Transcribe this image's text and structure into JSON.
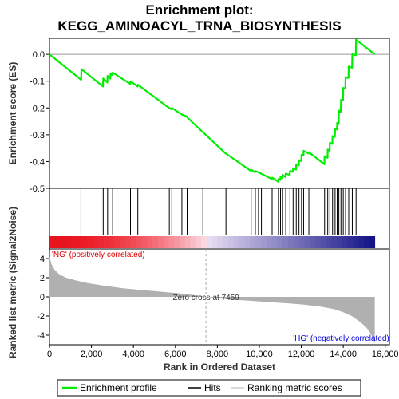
{
  "title_line1": "Enrichment plot:",
  "title_line2": "KEGG_AMINOACYL_TRNA_BIOSYNTHESIS",
  "colors": {
    "profile": "#00ee00",
    "hits": "#000000",
    "metric_fill": "#b0b0b0",
    "pos_label": "#dd0000",
    "neg_label": "#0000dd",
    "frame": "#000000"
  },
  "chart_data": {
    "type": "line",
    "es_panel": {
      "ylabel": "Enrichment score (ES)",
      "xlim": [
        0,
        16200
      ],
      "ylim": [
        -0.5,
        0.06
      ],
      "yticks": [
        0.0,
        -0.1,
        -0.2,
        -0.3,
        -0.4,
        -0.5
      ],
      "ytick_labels": [
        "0.0",
        "-0.1",
        "-0.2",
        "-0.3",
        "-0.4",
        "-0.5"
      ],
      "series": [
        {
          "name": "Enrichment profile",
          "x": [
            0,
            1510,
            1520,
            2550,
            2560,
            2760,
            2770,
            2900,
            2910,
            3000,
            3010,
            3850,
            3860,
            4200,
            4210,
            5700,
            5710,
            5820,
            5830,
            6300,
            6310,
            6550,
            6560,
            7300,
            7310,
            8400,
            8410,
            9600,
            9610,
            9800,
            9810,
            9950,
            9960,
            10600,
            10610,
            10900,
            10910,
            11000,
            11010,
            11100,
            11110,
            11250,
            11260,
            11450,
            11460,
            11600,
            11610,
            11750,
            11760,
            11880,
            11890,
            12000,
            12010,
            12100,
            12110,
            12350,
            12360,
            13100,
            13110,
            13250,
            13260,
            13350,
            13360,
            13480,
            13490,
            13600,
            13610,
            13700,
            13710,
            13780,
            13790,
            13880,
            13890,
            13990,
            14000,
            14100,
            14110,
            14250,
            14260,
            14420,
            14430,
            14600,
            14610,
            15500
          ],
          "y": [
            0.0,
            -0.095,
            -0.055,
            -0.12,
            -0.09,
            -0.105,
            -0.08,
            -0.09,
            -0.072,
            -0.077,
            -0.068,
            -0.11,
            -0.1,
            -0.12,
            -0.113,
            -0.2,
            -0.2,
            -0.205,
            -0.2,
            -0.224,
            -0.225,
            -0.232,
            -0.235,
            -0.29,
            -0.29,
            -0.37,
            -0.37,
            -0.435,
            -0.43,
            -0.44,
            -0.435,
            -0.44,
            -0.44,
            -0.465,
            -0.46,
            -0.475,
            -0.465,
            -0.468,
            -0.458,
            -0.462,
            -0.45,
            -0.458,
            -0.445,
            -0.45,
            -0.435,
            -0.438,
            -0.425,
            -0.43,
            -0.41,
            -0.414,
            -0.395,
            -0.398,
            -0.375,
            -0.378,
            -0.36,
            -0.37,
            -0.365,
            -0.41,
            -0.38,
            -0.386,
            -0.355,
            -0.36,
            -0.33,
            -0.334,
            -0.305,
            -0.308,
            -0.28,
            -0.28,
            -0.255,
            -0.26,
            -0.21,
            -0.214,
            -0.17,
            -0.17,
            -0.125,
            -0.128,
            -0.085,
            -0.088,
            -0.045,
            -0.05,
            0.0,
            -0.003,
            0.055,
            0.0
          ]
        }
      ]
    },
    "hits": [
      1500,
      2560,
      2770,
      3010,
      3860,
      4210,
      5710,
      5830,
      6310,
      6560,
      7310,
      8410,
      9610,
      9810,
      9960,
      10100,
      10610,
      10910,
      11010,
      11110,
      11260,
      11460,
      11610,
      11760,
      11890,
      12010,
      12110,
      12360,
      13110,
      13260,
      13360,
      13490,
      13610,
      13710,
      13790,
      13890,
      14000,
      14110,
      14260,
      14430,
      14610
    ],
    "metric_panel": {
      "ylabel": "Ranked list metric (Signal2Noise)",
      "xlabel": "Rank in Ordered Dataset",
      "ylim": [
        -5,
        5
      ],
      "yticks": [
        4,
        2,
        0,
        -2,
        -4
      ],
      "ytick_labels": [
        "4",
        "2",
        "0",
        "-2",
        "-4"
      ],
      "xticks": [
        0,
        2000,
        4000,
        6000,
        8000,
        10000,
        12000,
        14000,
        16000
      ],
      "xtick_labels": [
        "0",
        "2,000",
        "4,000",
        "6,000",
        "8,000",
        "10,000",
        "12,000",
        "14,000",
        "16,000"
      ],
      "curve_x": [
        0,
        100,
        250,
        500,
        800,
        1200,
        1800,
        2500,
        3500,
        4500,
        5500,
        6500,
        7459,
        8500,
        9500,
        10500,
        11500,
        12300,
        13000,
        13600,
        14000,
        14400,
        14800,
        15100,
        15300,
        15450,
        15500
      ],
      "curve_y": [
        4.2,
        3.4,
        2.8,
        2.3,
        2.0,
        1.75,
        1.45,
        1.2,
        0.9,
        0.7,
        0.5,
        0.3,
        0.0,
        -0.25,
        -0.4,
        -0.55,
        -0.7,
        -0.85,
        -1.05,
        -1.3,
        -1.6,
        -2.0,
        -2.6,
        -3.2,
        -3.8,
        -4.5,
        -4.9
      ],
      "zero_cross_label": "Zero cross at 7459",
      "zero_cross": 7459,
      "pos_label": "'NG' (positively correlated)",
      "neg_label": "'HG' (negatively correlated)"
    },
    "legend": {
      "items": [
        "Enrichment profile",
        "Hits",
        "Ranking metric scores"
      ],
      "placement": "bottom"
    }
  }
}
